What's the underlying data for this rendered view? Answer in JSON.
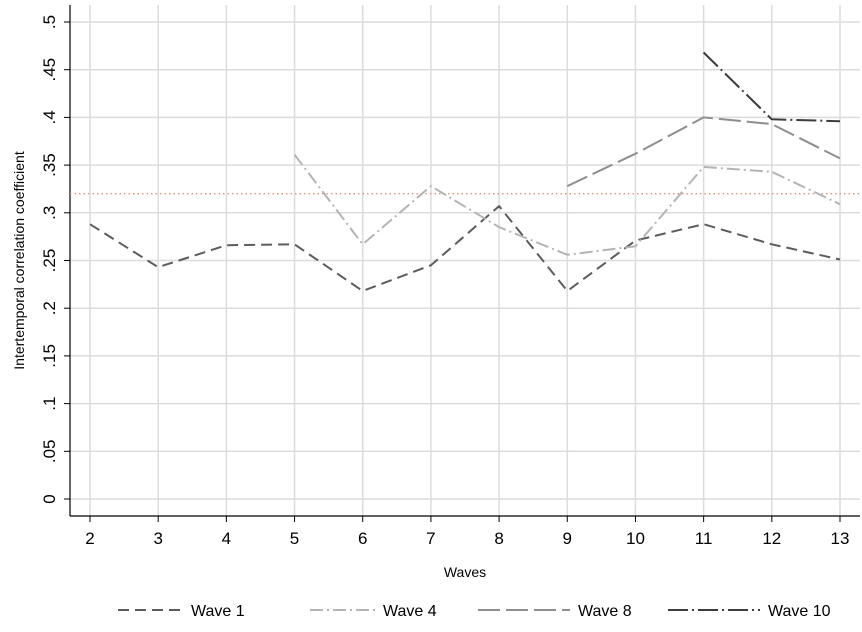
{
  "chart_data": {
    "type": "line",
    "xlabel": "Waves",
    "ylabel": "Intertemporal correlation coefficient",
    "xlim": [
      2,
      13
    ],
    "ylim": [
      0,
      0.5
    ],
    "x_ticks": [
      2,
      3,
      4,
      5,
      6,
      7,
      8,
      9,
      10,
      11,
      12,
      13
    ],
    "x_tick_labels": [
      "2",
      "3",
      "4",
      "5",
      "6",
      "7",
      "8",
      "9",
      "10",
      "11",
      "12",
      "13"
    ],
    "y_ticks": [
      0,
      0.05,
      0.1,
      0.15,
      0.2,
      0.25,
      0.3,
      0.35,
      0.4,
      0.45,
      0.5
    ],
    "y_tick_labels": [
      "0",
      ".05",
      ".1",
      ".15",
      ".2",
      ".25",
      ".3",
      ".35",
      ".4",
      ".45",
      ".5"
    ],
    "grid": true,
    "legend_position": "bottom",
    "series": [
      {
        "name": "Wave 1",
        "color": "#5c5c5c",
        "dash": "long-dash",
        "points": [
          [
            2,
            0.288
          ],
          [
            3,
            0.243
          ],
          [
            4,
            0.266
          ],
          [
            5,
            0.267
          ],
          [
            6,
            0.218
          ],
          [
            7,
            0.245
          ],
          [
            8,
            0.307
          ],
          [
            9,
            0.218
          ],
          [
            10,
            0.271
          ],
          [
            11,
            0.288
          ],
          [
            12,
            0.267
          ],
          [
            13,
            0.251
          ]
        ]
      },
      {
        "name": "Wave 4",
        "color": "#b4b4b4",
        "dash": "dash-dot",
        "points": [
          [
            5,
            0.361
          ],
          [
            6,
            0.267
          ],
          [
            7,
            0.328
          ],
          [
            8,
            0.285
          ],
          [
            9,
            0.256
          ],
          [
            10,
            0.265
          ],
          [
            11,
            0.348
          ],
          [
            12,
            0.343
          ],
          [
            13,
            0.309
          ]
        ]
      },
      {
        "name": "Wave 8",
        "color": "#8e8e8e",
        "dash": "very-long-dash",
        "points": [
          [
            9,
            0.328
          ],
          [
            10,
            0.362
          ],
          [
            11,
            0.4
          ],
          [
            12,
            0.393
          ],
          [
            13,
            0.357
          ]
        ]
      },
      {
        "name": "Wave 10",
        "color": "#3c3c3c",
        "dash": "long-dash-dot",
        "points": [
          [
            11,
            0.468
          ],
          [
            12,
            0.398
          ],
          [
            13,
            0.396
          ]
        ]
      }
    ],
    "reference_line": {
      "y": 0.32,
      "color": "#e8907a",
      "style": "dotted"
    }
  }
}
